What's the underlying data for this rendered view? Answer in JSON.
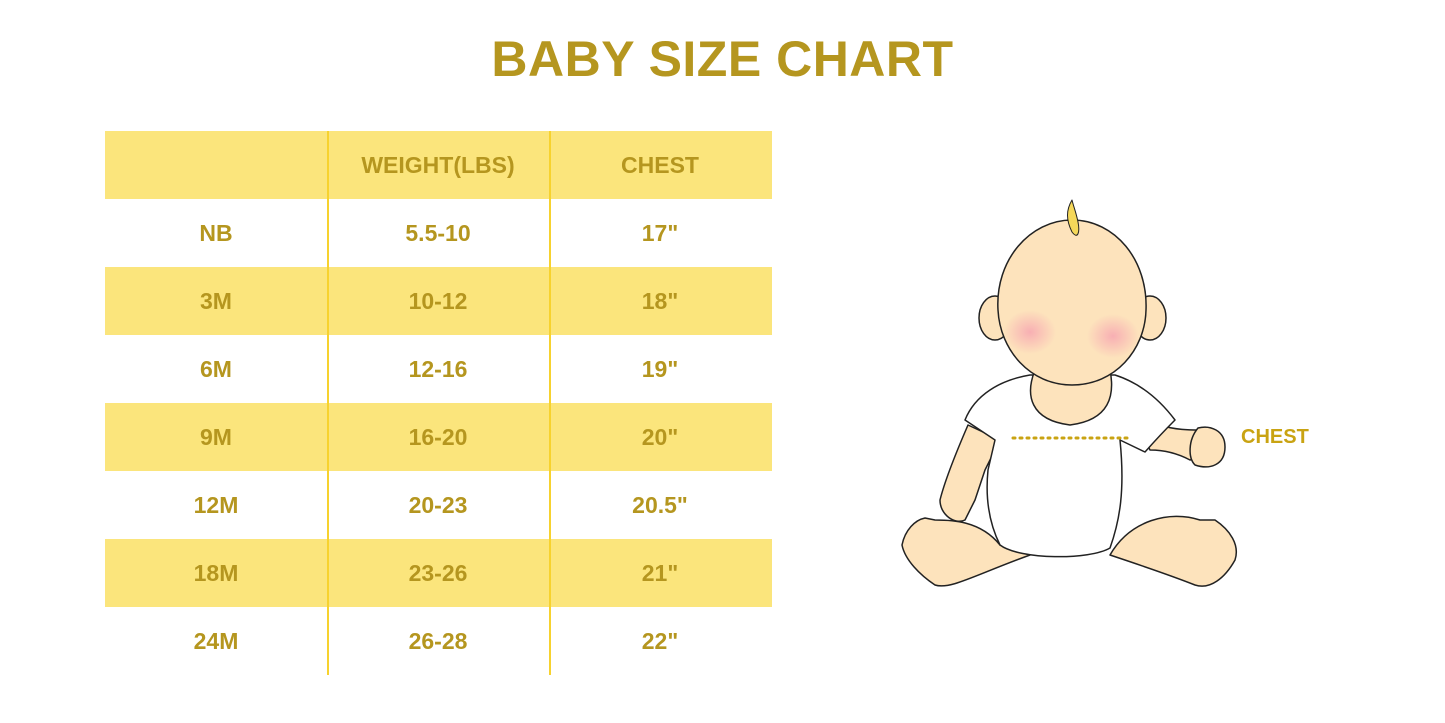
{
  "title": "BABY SIZE CHART",
  "table": {
    "headers": [
      "",
      "WEIGHT(LBS)",
      "CHEST"
    ],
    "rows": [
      [
        "NB",
        "5.5-10",
        "17\""
      ],
      [
        "3M",
        "10-12",
        "18\""
      ],
      [
        "6M",
        "12-16",
        "19\""
      ],
      [
        "9M",
        "16-20",
        "20\""
      ],
      [
        "12M",
        "20-23",
        "20.5\""
      ],
      [
        "18M",
        "23-26",
        "21\""
      ],
      [
        "24M",
        "26-28",
        "22\""
      ]
    ]
  },
  "illustration": {
    "chest_label": "CHEST"
  },
  "colors": {
    "text": "#B5961F",
    "stripe": "#FBE57C",
    "skin": "#FDE3BC",
    "cheek": "#F7A9B2"
  }
}
